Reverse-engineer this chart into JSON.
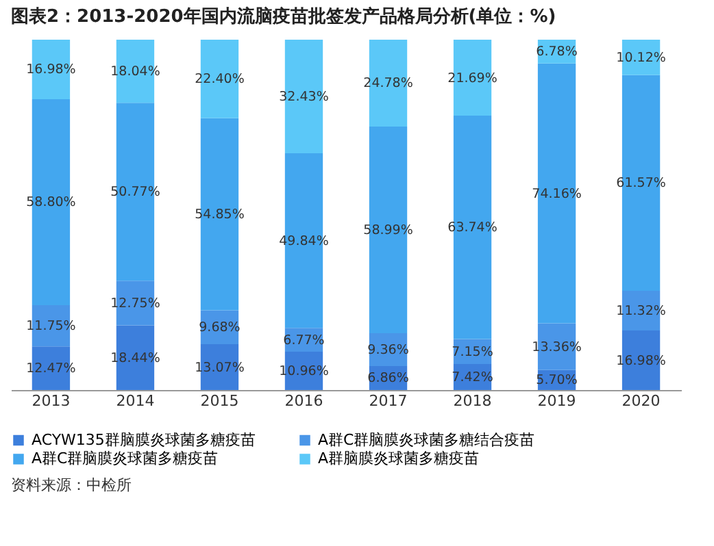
{
  "chart_data": {
    "type": "bar",
    "title": "图表2：2013-2020年国内流脑疫苗批签发产品格局分析(单位：%)",
    "categories": [
      "2013",
      "2014",
      "2015",
      "2016",
      "2017",
      "2018",
      "2019",
      "2020"
    ],
    "stacked": true,
    "legend": "bottom",
    "tick_labels": "x",
    "ylim": [
      0,
      100
    ],
    "series": [
      {
        "name": "ACYW135群脑膜炎球菌多糖疫苗",
        "color": "#3d7fdc",
        "values": [
          12.47,
          18.44,
          13.07,
          10.96,
          6.86,
          7.42,
          5.7,
          16.98
        ],
        "value_labels": [
          "12.47%",
          "18.44%",
          "13.07%",
          "10.96%",
          "6.86%",
          "7.42%",
          "5.70%",
          "16.98%"
        ]
      },
      {
        "name": "A群C群脑膜炎球菌多糖结合疫苗",
        "color": "#4a96e8",
        "values": [
          11.75,
          12.75,
          9.68,
          6.77,
          9.36,
          7.15,
          13.36,
          11.32
        ],
        "value_labels": [
          "11.75%",
          "12.75%",
          "9.68%",
          "6.77%",
          "9.36%",
          "7.15%",
          "13.36%",
          "11.32%"
        ]
      },
      {
        "name": "A群C群脑膜炎球菌多糖疫苗",
        "color": "#43a7ef",
        "values": [
          58.8,
          50.77,
          54.85,
          49.84,
          58.99,
          63.74,
          74.16,
          61.57
        ],
        "value_labels": [
          "58.80%",
          "50.77%",
          "54.85%",
          "49.84%",
          "58.99%",
          "63.74%",
          "74.16%",
          "61.57%"
        ]
      },
      {
        "name": "A群脑膜炎球菌多糖疫苗",
        "color": "#5bc8f8",
        "values": [
          16.98,
          18.04,
          22.4,
          32.43,
          24.78,
          21.69,
          6.78,
          10.12
        ],
        "value_labels": [
          "16.98%",
          "18.04%",
          "22.40%",
          "32.43%",
          "24.78%",
          "21.69%",
          "6.78%",
          "10.12%"
        ]
      }
    ],
    "annotations": [
      "资料来源：中检所"
    ]
  }
}
